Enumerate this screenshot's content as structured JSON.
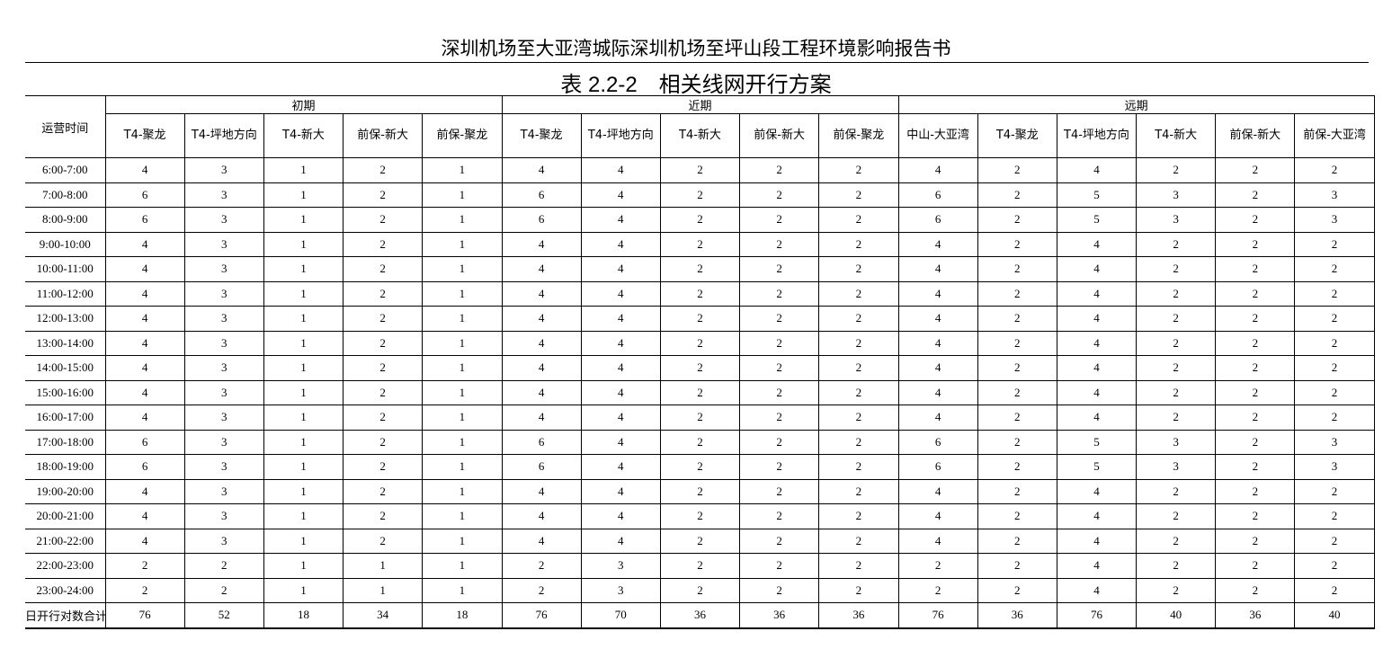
{
  "header": {
    "title": "深圳机场至大亚湾城际深圳机场至坪山段工程环境影响报告书"
  },
  "table": {
    "caption": "表 2.2-2　相关线网开行方案",
    "corner": "运营时间",
    "groups": [
      {
        "label": "初期",
        "columns": [
          "T4-聚龙",
          "T4-坪地方向",
          "T4-新大",
          "前保-新大",
          "前保-聚龙"
        ]
      },
      {
        "label": "近期",
        "columns": [
          "T4-聚龙",
          "T4-坪地方向",
          "T4-新大",
          "前保-新大",
          "前保-聚龙"
        ]
      },
      {
        "label": "远期",
        "columns": [
          "中山-大亚湾",
          "T4-聚龙",
          "T4-坪地方向",
          "T4-新大",
          "前保-新大",
          "前保-大亚湾"
        ]
      }
    ],
    "rows": [
      {
        "time": "6:00-7:00",
        "values": [
          4,
          3,
          1,
          2,
          1,
          4,
          4,
          2,
          2,
          2,
          4,
          2,
          4,
          2,
          2,
          2
        ]
      },
      {
        "time": "7:00-8:00",
        "values": [
          6,
          3,
          1,
          2,
          1,
          6,
          4,
          2,
          2,
          2,
          6,
          2,
          5,
          3,
          2,
          3
        ]
      },
      {
        "time": "8:00-9:00",
        "values": [
          6,
          3,
          1,
          2,
          1,
          6,
          4,
          2,
          2,
          2,
          6,
          2,
          5,
          3,
          2,
          3
        ]
      },
      {
        "time": "9:00-10:00",
        "values": [
          4,
          3,
          1,
          2,
          1,
          4,
          4,
          2,
          2,
          2,
          4,
          2,
          4,
          2,
          2,
          2
        ]
      },
      {
        "time": "10:00-11:00",
        "values": [
          4,
          3,
          1,
          2,
          1,
          4,
          4,
          2,
          2,
          2,
          4,
          2,
          4,
          2,
          2,
          2
        ]
      },
      {
        "time": "11:00-12:00",
        "values": [
          4,
          3,
          1,
          2,
          1,
          4,
          4,
          2,
          2,
          2,
          4,
          2,
          4,
          2,
          2,
          2
        ]
      },
      {
        "time": "12:00-13:00",
        "values": [
          4,
          3,
          1,
          2,
          1,
          4,
          4,
          2,
          2,
          2,
          4,
          2,
          4,
          2,
          2,
          2
        ]
      },
      {
        "time": "13:00-14:00",
        "values": [
          4,
          3,
          1,
          2,
          1,
          4,
          4,
          2,
          2,
          2,
          4,
          2,
          4,
          2,
          2,
          2
        ]
      },
      {
        "time": "14:00-15:00",
        "values": [
          4,
          3,
          1,
          2,
          1,
          4,
          4,
          2,
          2,
          2,
          4,
          2,
          4,
          2,
          2,
          2
        ]
      },
      {
        "time": "15:00-16:00",
        "values": [
          4,
          3,
          1,
          2,
          1,
          4,
          4,
          2,
          2,
          2,
          4,
          2,
          4,
          2,
          2,
          2
        ]
      },
      {
        "time": "16:00-17:00",
        "values": [
          4,
          3,
          1,
          2,
          1,
          4,
          4,
          2,
          2,
          2,
          4,
          2,
          4,
          2,
          2,
          2
        ]
      },
      {
        "time": "17:00-18:00",
        "values": [
          6,
          3,
          1,
          2,
          1,
          6,
          4,
          2,
          2,
          2,
          6,
          2,
          5,
          3,
          2,
          3
        ]
      },
      {
        "time": "18:00-19:00",
        "values": [
          6,
          3,
          1,
          2,
          1,
          6,
          4,
          2,
          2,
          2,
          6,
          2,
          5,
          3,
          2,
          3
        ]
      },
      {
        "time": "19:00-20:00",
        "values": [
          4,
          3,
          1,
          2,
          1,
          4,
          4,
          2,
          2,
          2,
          4,
          2,
          4,
          2,
          2,
          2
        ]
      },
      {
        "time": "20:00-21:00",
        "values": [
          4,
          3,
          1,
          2,
          1,
          4,
          4,
          2,
          2,
          2,
          4,
          2,
          4,
          2,
          2,
          2
        ]
      },
      {
        "time": "21:00-22:00",
        "values": [
          4,
          3,
          1,
          2,
          1,
          4,
          4,
          2,
          2,
          2,
          4,
          2,
          4,
          2,
          2,
          2
        ]
      },
      {
        "time": "22:00-23:00",
        "values": [
          2,
          2,
          1,
          1,
          1,
          2,
          3,
          2,
          2,
          2,
          2,
          2,
          4,
          2,
          2,
          2
        ]
      },
      {
        "time": "23:00-24:00",
        "values": [
          2,
          2,
          1,
          1,
          1,
          2,
          3,
          2,
          2,
          2,
          2,
          2,
          4,
          2,
          2,
          2
        ]
      }
    ],
    "total": {
      "label": "日开行对数合计",
      "values": [
        76,
        52,
        18,
        34,
        18,
        76,
        70,
        36,
        36,
        36,
        76,
        36,
        76,
        40,
        36,
        40
      ]
    }
  }
}
